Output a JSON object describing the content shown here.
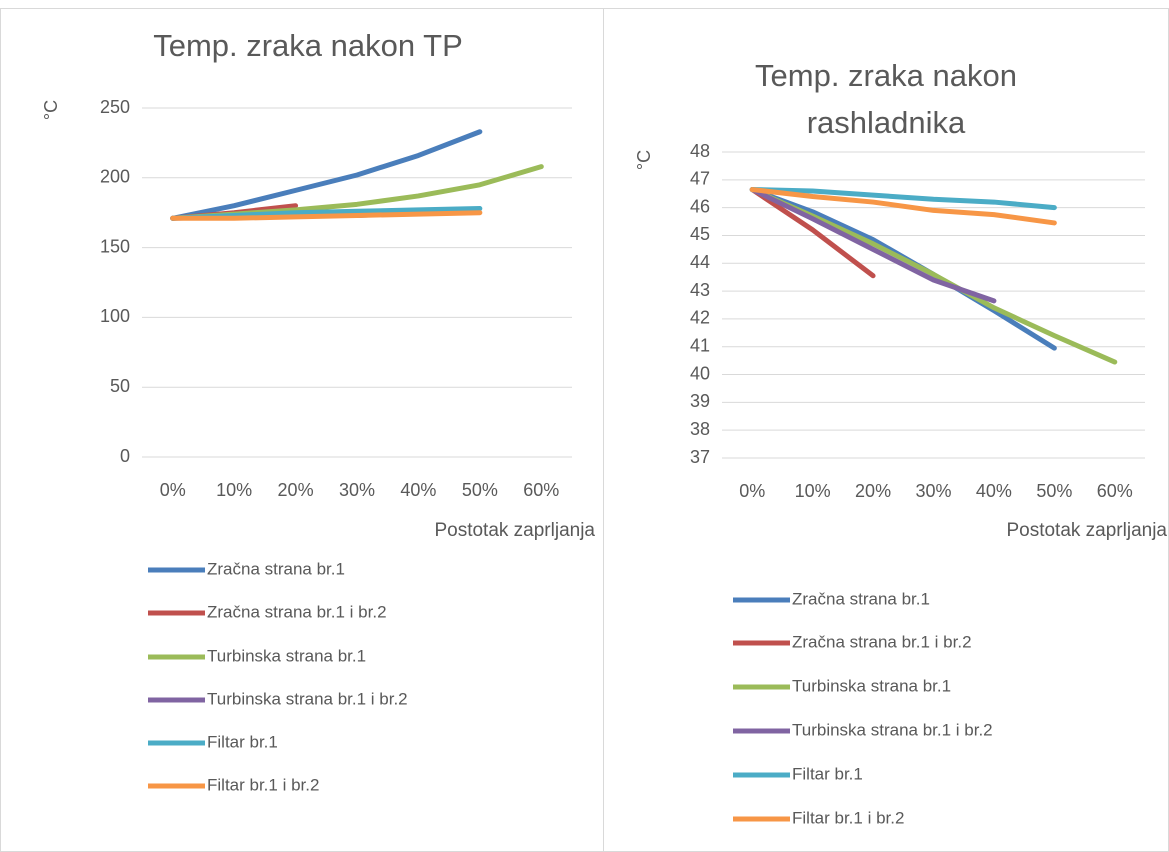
{
  "chart_data": [
    {
      "type": "line",
      "title": "Temp. zraka nakon TP",
      "ylabel": "°C",
      "xlabel": "Postotak zaprljanja",
      "categories": [
        "0%",
        "10%",
        "20%",
        "30%",
        "40%",
        "50%",
        "60%"
      ],
      "ylim": [
        0,
        250
      ],
      "yticks": [
        0,
        50,
        100,
        150,
        200,
        250
      ],
      "grid": true,
      "series": [
        {
          "name": "Zračna strana br.1",
          "color": "#4a7ebb",
          "values": [
            171,
            180,
            191,
            202,
            216,
            233,
            null
          ]
        },
        {
          "name": "Zračna strana br.1 i br.2",
          "color": "#c0504d",
          "values": [
            171,
            175,
            180,
            null,
            null,
            null,
            null
          ]
        },
        {
          "name": "Turbinska strana br.1",
          "color": "#9bbb59",
          "values": [
            171,
            174,
            177,
            181,
            187,
            195,
            208
          ]
        },
        {
          "name": "Turbinska strana br.1 i br.2",
          "color": "#8064a2",
          "values": [
            171,
            172,
            173,
            173,
            175,
            null,
            null
          ]
        },
        {
          "name": "Filtar br.1",
          "color": "#4bacc6",
          "values": [
            171,
            173,
            175,
            176,
            177,
            178,
            null
          ]
        },
        {
          "name": "Filtar br.1 i br.2",
          "color": "#f79646",
          "values": [
            171,
            171,
            172,
            173,
            174,
            175,
            null
          ]
        }
      ]
    },
    {
      "type": "line",
      "title": "Temp. zraka nakon rashladnika",
      "ylabel": "°C",
      "xlabel": "Postotak zaprljanja",
      "categories": [
        "0%",
        "10%",
        "20%",
        "30%",
        "40%",
        "50%",
        "60%"
      ],
      "ylim": [
        37,
        48
      ],
      "yticks": [
        37,
        38,
        39,
        40,
        41,
        42,
        43,
        44,
        45,
        46,
        47,
        48
      ],
      "grid": true,
      "series": [
        {
          "name": "Zračna strana br.1",
          "color": "#4a7ebb",
          "values": [
            46.65,
            45.85,
            44.85,
            43.6,
            42.3,
            40.95,
            null
          ]
        },
        {
          "name": "Zračna strana br.1 i br.2",
          "color": "#c0504d",
          "values": [
            46.65,
            45.2,
            43.55,
            null,
            null,
            null,
            null
          ]
        },
        {
          "name": "Turbinska strana br.1",
          "color": "#9bbb59",
          "values": [
            46.65,
            45.7,
            44.7,
            43.6,
            42.4,
            41.4,
            40.45
          ]
        },
        {
          "name": "Turbinska strana br.1 i br.2",
          "color": "#8064a2",
          "values": [
            46.65,
            45.6,
            44.5,
            43.4,
            42.65,
            null,
            null
          ]
        },
        {
          "name": "Filtar br.1",
          "color": "#4bacc6",
          "values": [
            46.65,
            46.6,
            46.45,
            46.3,
            46.2,
            46.0,
            null
          ]
        },
        {
          "name": "Filtar br.1 i br.2",
          "color": "#f79646",
          "values": [
            46.65,
            46.4,
            46.2,
            45.9,
            45.75,
            45.45,
            null
          ]
        }
      ]
    }
  ]
}
